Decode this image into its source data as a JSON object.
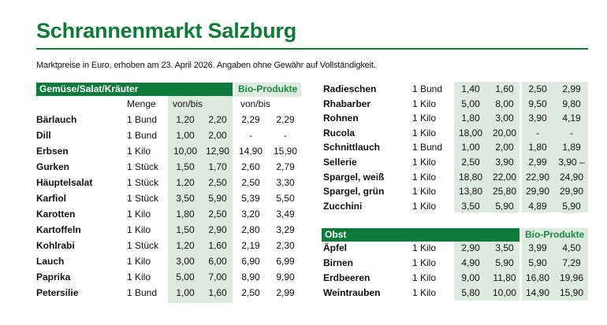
{
  "title": "Schrannenmarkt Salzburg",
  "subtitle": "Marktpreise in Euro, erhoben am 23. April 2026. Angaben ohne Gewähr auf Vollständigkeit.",
  "colors": {
    "brand_green": "#0e7a3a",
    "shade_green": "#ddebdf",
    "bio_text": "#1a8a46"
  },
  "gemuese": {
    "header": "Gemüse/Salat/Kräuter",
    "bio_header": "Bio-Produkte",
    "col_menge": "Menge",
    "col_vonbis": "von/bis",
    "col_bio_vonbis": "von/bis",
    "rows": [
      {
        "name": "Bärlauch",
        "menge": "1 Bund",
        "von": "1,20",
        "bis": "2,20",
        "bio_von": "2,29",
        "bio_bis": "2,29"
      },
      {
        "name": "Dill",
        "menge": "1 Bund",
        "von": "1,00",
        "bis": "2,00",
        "bio_von": "-",
        "bio_bis": "-"
      },
      {
        "name": "Erbsen",
        "menge": "1 Kilo",
        "von": "10,00",
        "bis": "12,90",
        "bio_von": "14,90",
        "bio_bis": "15,90"
      },
      {
        "name": "Gurken",
        "menge": "1 Stück",
        "von": "1,50",
        "bis": "1,70",
        "bio_von": "2,60",
        "bio_bis": "2,79"
      },
      {
        "name": "Häuptelsalat",
        "menge": "1 Stück",
        "von": "1,20",
        "bis": "2,50",
        "bio_von": "2,50",
        "bio_bis": "3,30"
      },
      {
        "name": "Karfiol",
        "menge": "1 Stück",
        "von": "3,50",
        "bis": "5,90",
        "bio_von": "5,39",
        "bio_bis": "5,50"
      },
      {
        "name": "Karotten",
        "menge": "1 Kilo",
        "von": "1,80",
        "bis": "2,50",
        "bio_von": "3,20",
        "bio_bis": "3,49"
      },
      {
        "name": "Kartoffeln",
        "menge": "1 Kilo",
        "von": "1,50",
        "bis": "2,90",
        "bio_von": "2,80",
        "bio_bis": "3,29"
      },
      {
        "name": "Kohlrabi",
        "menge": "1 Stück",
        "von": "1,20",
        "bis": "1,60",
        "bio_von": "2,19",
        "bio_bis": "2,30"
      },
      {
        "name": "Lauch",
        "menge": "1 Kilo",
        "von": "3,00",
        "bis": "6,00",
        "bio_von": "6,90",
        "bio_bis": "6,99"
      },
      {
        "name": "Paprika",
        "menge": "1 Kilo",
        "von": "5,00",
        "bis": "7,00",
        "bio_von": "8,90",
        "bio_bis": "9,90"
      },
      {
        "name": "Petersilie",
        "menge": "1 Bund",
        "von": "1,00",
        "bis": "1,60",
        "bio_von": "2,50",
        "bio_bis": "2,99"
      }
    ]
  },
  "gemuese2": {
    "rows": [
      {
        "name": "Radieschen",
        "menge": "1 Bund",
        "von": "1,40",
        "bis": "1,60",
        "bio_von": "2,50",
        "bio_bis": "2,99"
      },
      {
        "name": "Rhabarber",
        "menge": "1 Kilo",
        "von": "5,00",
        "bis": "8,00",
        "bio_von": "9,50",
        "bio_bis": "9,80"
      },
      {
        "name": "Rohnen",
        "menge": "1 Kilo",
        "von": "1,80",
        "bis": "3,00",
        "bio_von": "3,90",
        "bio_bis": "4,19"
      },
      {
        "name": "Rucola",
        "menge": "1 Kilo",
        "von": "18,00",
        "bis": "20,00",
        "bio_von": "-",
        "bio_bis": "-"
      },
      {
        "name": "Schnittlauch",
        "menge": "1 Bund",
        "von": "1,00",
        "bis": "2,00",
        "bio_von": "1,80",
        "bio_bis": "1,89"
      },
      {
        "name": "Sellerie",
        "menge": "1 Kilo",
        "von": "2,50",
        "bis": "3,90",
        "bio_von": "2,99",
        "bio_bis": "3,90 –"
      },
      {
        "name": "Spargel, weiß",
        "menge": "1 Kilo",
        "von": "18,80",
        "bis": "22,00",
        "bio_von": "22,90",
        "bio_bis": "24,90"
      },
      {
        "name": "Spargel, grün",
        "menge": "1 Kilo",
        "von": "13,80",
        "bis": "25,80",
        "bio_von": "29,90",
        "bio_bis": "29,90"
      },
      {
        "name": "Zucchini",
        "menge": "1 Kilo",
        "von": "3,50",
        "bis": "5,90",
        "bio_von": "4,89",
        "bio_bis": "5,90"
      }
    ]
  },
  "obst": {
    "header": "Obst",
    "bio_header": "Bio-Produkte",
    "rows": [
      {
        "name": "Äpfel",
        "menge": "1 Kilo",
        "von": "2,90",
        "bis": "3,50",
        "bio_von": "3,99",
        "bio_bis": "4,50"
      },
      {
        "name": "Birnen",
        "menge": "1 Kilo",
        "von": "4,90",
        "bis": "5,90",
        "bio_von": "5,90",
        "bio_bis": "7,29"
      },
      {
        "name": "Erdbeeren",
        "menge": "1 Kilo",
        "von": "9,00",
        "bis": "11,80",
        "bio_von": "16,80",
        "bio_bis": "19,96"
      },
      {
        "name": "Weintrauben",
        "menge": "1 Kilo",
        "von": "5,80",
        "bis": "10,00",
        "bio_von": "14,90",
        "bio_bis": "15,90"
      }
    ]
  }
}
